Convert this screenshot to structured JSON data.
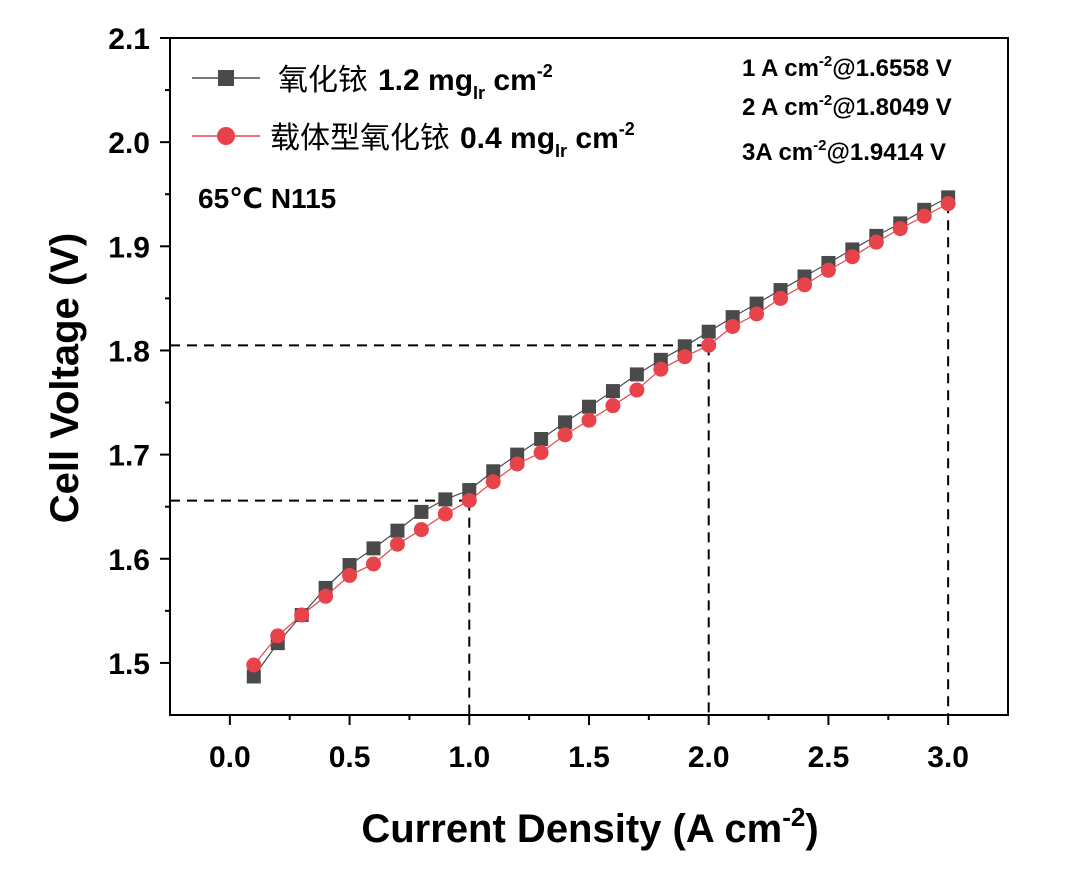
{
  "chart_data": {
    "type": "line",
    "xlabel": "Current Density (A cm",
    "xlabel_sup": "-2",
    "xlabel_tail": ")",
    "ylabel": "Cell Voltage (V)",
    "xlim": [
      -0.25,
      3.25
    ],
    "ylim": [
      1.45,
      2.1
    ],
    "x_ticks": [
      "0.0",
      "0.5",
      "1.0",
      "1.5",
      "2.0",
      "2.5",
      "3.0"
    ],
    "y_ticks": [
      "1.5",
      "1.6",
      "1.7",
      "1.8",
      "1.9",
      "2.0",
      "2.1"
    ],
    "legend_position": "top-left",
    "series": [
      {
        "name": "氧化铱 1.2 mg",
        "name_cn": "氧化铱",
        "name_value": "1.2 mg",
        "name_sub": "Ir",
        "name_unit": " cm",
        "name_sup": "-2",
        "color": "#4a4a4a",
        "marker": "square",
        "x": [
          0.1,
          0.2,
          0.3,
          0.4,
          0.5,
          0.6,
          0.7,
          0.8,
          0.9,
          1.0,
          1.1,
          1.2,
          1.3,
          1.4,
          1.5,
          1.6,
          1.7,
          1.8,
          1.9,
          2.0,
          2.1,
          2.2,
          2.3,
          2.4,
          2.5,
          2.6,
          2.7,
          2.8,
          2.9,
          3.0
        ],
        "values": [
          1.487,
          1.519,
          1.546,
          1.572,
          1.594,
          1.61,
          1.627,
          1.645,
          1.657,
          1.666,
          1.684,
          1.7,
          1.715,
          1.731,
          1.746,
          1.761,
          1.777,
          1.791,
          1.804,
          1.818,
          1.832,
          1.845,
          1.858,
          1.871,
          1.884,
          1.897,
          1.91,
          1.922,
          1.935,
          1.947
        ]
      },
      {
        "name": "载体型氧化铱 0.4 mg",
        "name_cn": "载体型氧化铱",
        "name_value": "0.4 mg",
        "name_sub": "Ir",
        "name_unit": " cm",
        "name_sup": "-2",
        "color": "#e8424a",
        "marker": "circle",
        "x": [
          0.1,
          0.2,
          0.3,
          0.4,
          0.5,
          0.6,
          0.7,
          0.8,
          0.9,
          1.0,
          1.1,
          1.2,
          1.3,
          1.4,
          1.5,
          1.6,
          1.7,
          1.8,
          1.9,
          2.0,
          2.1,
          2.2,
          2.3,
          2.4,
          2.5,
          2.6,
          2.7,
          2.8,
          2.9,
          3.0
        ],
        "values": [
          1.498,
          1.526,
          1.546,
          1.564,
          1.584,
          1.595,
          1.614,
          1.628,
          1.643,
          1.656,
          1.674,
          1.691,
          1.702,
          1.719,
          1.733,
          1.747,
          1.762,
          1.782,
          1.794,
          1.805,
          1.823,
          1.835,
          1.85,
          1.863,
          1.877,
          1.89,
          1.904,
          1.917,
          1.929,
          1.941
        ]
      }
    ],
    "annotations": {
      "condition": "65℃ N115",
      "markers": [
        {
          "pre": "1 A cm",
          "sup": "-2",
          "post": "@1.6558 V"
        },
        {
          "pre": "2 A cm",
          "sup": "-2",
          "post": "@1.8049 V"
        },
        {
          "pre": "3A cm",
          "sup": "-2",
          "post": "@1.9414 V"
        }
      ]
    },
    "guide_lines": [
      {
        "x": 1.0,
        "y": 1.6558
      },
      {
        "x": 2.0,
        "y": 1.8049
      },
      {
        "x": 3.0,
        "y": 1.9414
      }
    ]
  }
}
